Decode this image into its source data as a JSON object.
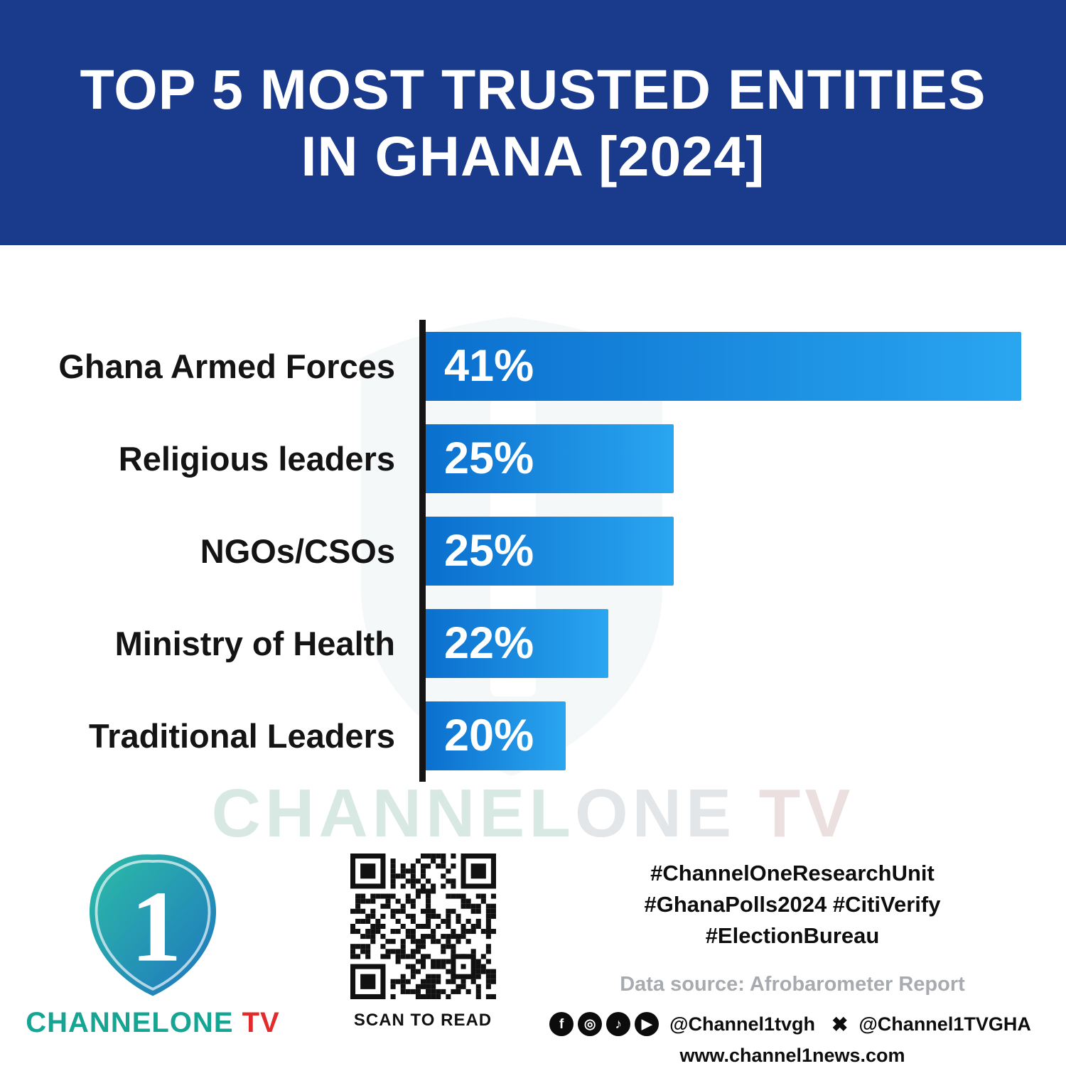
{
  "header": {
    "title_line1": "TOP 5 MOST TRUSTED ENTITIES",
    "title_line2": "IN GHANA [2024]"
  },
  "chart_data": {
    "type": "bar",
    "orientation": "horizontal",
    "title": "Top 5 Most Trusted Entities in Ghana [2024]",
    "categories": [
      "Ghana Armed Forces",
      "Religious leaders",
      "NGOs/CSOs",
      "Ministry of Health",
      "Traditional Leaders"
    ],
    "values": [
      41,
      25,
      25,
      22,
      20
    ],
    "value_labels": [
      "41%",
      "25%",
      "25%",
      "22%",
      "20%"
    ],
    "xlabel": "",
    "ylabel": "",
    "xlim": [
      0,
      41
    ],
    "grid": false,
    "legend": false,
    "bar_gradient": [
      "#0a6fce",
      "#2aa6f0"
    ],
    "axis_color": "#141414",
    "bar_widths_pct": [
      100,
      41.7,
      41.7,
      30.7,
      23.5
    ]
  },
  "watermark": {
    "part1": "CHANNEL",
    "part2": "ONE",
    "part3": " TV"
  },
  "footer": {
    "logo": {
      "numeral": "1",
      "brand_channel": "CHANNELONE",
      "brand_tv": " TV"
    },
    "qr_caption": "SCAN TO READ",
    "hashtags": [
      "#ChannelOneResearchUnit",
      "#GhanaPolls2024 #CitiVerify",
      "#ElectionBureau"
    ],
    "data_source": "Data source: Afrobarometer Report",
    "social": {
      "icons": [
        {
          "name": "facebook-icon",
          "glyph": "f"
        },
        {
          "name": "instagram-icon",
          "glyph": "◎"
        },
        {
          "name": "tiktok-icon",
          "glyph": "♪"
        },
        {
          "name": "youtube-icon",
          "glyph": "▶"
        }
      ],
      "handle_1": "@Channel1tvgh",
      "x_icon_glyph": "✖",
      "handle_2": "@Channel1TVGHA"
    },
    "website": "www.channel1news.com"
  }
}
